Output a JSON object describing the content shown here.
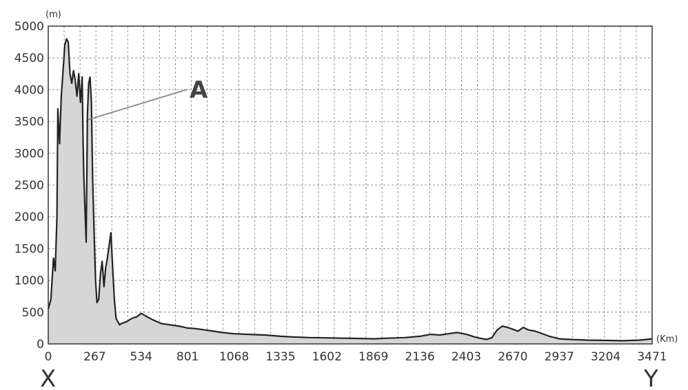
{
  "chart_data": {
    "type": "area",
    "y_unit": "(m)",
    "x_unit": "(Km)",
    "x_ticks": [
      0,
      267,
      534,
      801,
      1068,
      1335,
      1602,
      1869,
      2136,
      2403,
      2670,
      2937,
      3204,
      3471
    ],
    "y_ticks": [
      0,
      500,
      1000,
      1500,
      2000,
      2500,
      3000,
      3500,
      4000,
      4500,
      5000
    ],
    "xlim": [
      0,
      3471
    ],
    "ylim": [
      0,
      5000
    ],
    "grid": true,
    "grid_style": "dashed",
    "fill_color": "#d6d6d6",
    "line_color": "#222222",
    "start_label": "X",
    "end_label": "Y",
    "annotations": [
      {
        "text": "A",
        "x": 230,
        "y": 3530
      }
    ],
    "x": [
      0,
      15,
      30,
      40,
      50,
      55,
      65,
      75,
      85,
      95,
      105,
      115,
      125,
      135,
      145,
      155,
      165,
      175,
      185,
      195,
      200,
      205,
      210,
      218,
      225,
      232,
      240,
      248,
      255,
      265,
      272,
      280,
      290,
      300,
      310,
      320,
      330,
      340,
      350,
      360,
      370,
      380,
      390,
      400,
      410,
      420,
      450,
      480,
      510,
      534,
      560,
      600,
      650,
      700,
      750,
      801,
      850,
      900,
      950,
      1000,
      1068,
      1150,
      1250,
      1335,
      1400,
      1500,
      1602,
      1700,
      1800,
      1869,
      1950,
      2050,
      2136,
      2200,
      2250,
      2300,
      2350,
      2403,
      2450,
      2480,
      2520,
      2550,
      2580,
      2610,
      2640,
      2670,
      2700,
      2730,
      2760,
      2800,
      2850,
      2880,
      2910,
      2937,
      3000,
      3100,
      3204,
      3300,
      3400,
      3471
    ],
    "y": [
      550,
      700,
      1350,
      1150,
      2000,
      3700,
      3150,
      3900,
      4300,
      4700,
      4800,
      4750,
      4250,
      4100,
      4300,
      4150,
      3900,
      4250,
      3800,
      4200,
      3200,
      2600,
      2200,
      1600,
      3600,
      4100,
      4200,
      3800,
      2600,
      1600,
      1000,
      650,
      700,
      1100,
      1300,
      900,
      1200,
      1350,
      1550,
      1750,
      1200,
      700,
      400,
      350,
      300,
      320,
      350,
      400,
      430,
      480,
      440,
      380,
      320,
      300,
      280,
      250,
      240,
      220,
      200,
      180,
      160,
      150,
      140,
      120,
      110,
      100,
      95,
      90,
      85,
      80,
      90,
      100,
      120,
      150,
      140,
      160,
      180,
      150,
      110,
      90,
      70,
      100,
      220,
      280,
      260,
      230,
      200,
      260,
      220,
      200,
      150,
      120,
      100,
      80,
      70,
      60,
      55,
      50,
      60,
      80
    ]
  }
}
